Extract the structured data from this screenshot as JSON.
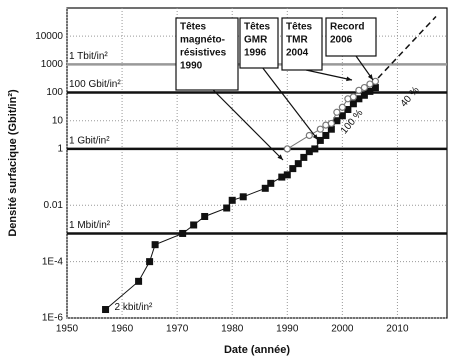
{
  "chart_data": {
    "type": "scatter",
    "x_label": "Date (année)",
    "y_label": "Densité surfacique (Gbit/in²)",
    "xlim": [
      1950,
      2019
    ],
    "xticks": [
      1950,
      1960,
      1970,
      1980,
      1990,
      2000,
      2010
    ],
    "ylim": [
      1e-06,
      100000
    ],
    "log_y": true,
    "grid": true,
    "yticks": [
      {
        "value": 1e-06,
        "label": "1E-6"
      },
      {
        "value": 0.0001,
        "label": "1E-4"
      },
      0.01,
      1,
      10,
      100,
      1000,
      10000
    ],
    "reference_lines": [
      {
        "value": 1000,
        "label": "1 Tbit/in²",
        "color": "#999999"
      },
      {
        "value": 100,
        "label": "100 Gbit/in²",
        "color": "#111111"
      },
      {
        "value": 1,
        "label": "1 Gbit/in²",
        "color": "#111111"
      },
      {
        "value": 0.001,
        "label": "1 Mbit/in²",
        "color": "#111111"
      }
    ],
    "series": [
      {
        "marker": "square",
        "color": "#111111",
        "x": [
          1957,
          1963,
          1965,
          1966,
          1971,
          1973,
          1975,
          1979,
          1980,
          1982,
          1986,
          1987,
          1989,
          1990,
          1991,
          1992,
          1993,
          1994,
          1995,
          1996,
          1997,
          1998,
          1999,
          2000,
          2001,
          2002,
          2003,
          2004,
          2005,
          2006
        ],
        "values": [
          2e-06,
          2e-05,
          0.0001,
          0.0004,
          0.001,
          0.002,
          0.004,
          0.008,
          0.015,
          0.02,
          0.04,
          0.06,
          0.1,
          0.12,
          0.2,
          0.3,
          0.5,
          0.8,
          1,
          2,
          3,
          5,
          10,
          15,
          25,
          40,
          60,
          80,
          110,
          150
        ]
      },
      {
        "marker": "circle",
        "color": "#777777",
        "x": [
          1990,
          1994,
          1996,
          1997,
          1998,
          1999,
          2000,
          2001,
          2002,
          2003,
          2004,
          2005,
          2006
        ],
        "values": [
          1,
          3,
          5,
          7,
          8,
          20,
          30,
          60,
          70,
          120,
          150,
          200,
          250
        ]
      }
    ],
    "trend": {
      "x": [
        2004,
        2017
      ],
      "values": [
        100,
        50000
      ]
    },
    "point_label": "2 kbit/in²",
    "rate_labels": [
      "40 %",
      "100 %"
    ],
    "annotations": [
      {
        "lines": [
          "Têtes",
          "magnéto-",
          "résistives",
          "1990"
        ]
      },
      {
        "lines": [
          "Têtes",
          "GMR",
          "1996"
        ]
      },
      {
        "lines": [
          "Têtes",
          "TMR",
          "2004"
        ]
      },
      {
        "lines": [
          "Record",
          "2006"
        ]
      }
    ]
  }
}
